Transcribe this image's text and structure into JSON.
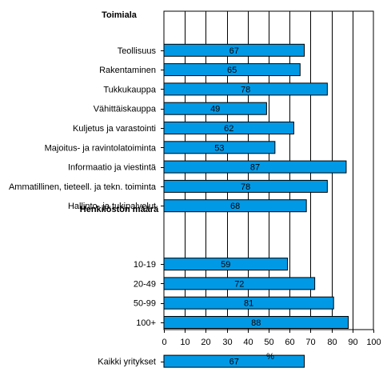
{
  "chart_data": {
    "type": "bar",
    "orientation": "horizontal",
    "xlabel": "%",
    "xlim": [
      0,
      100
    ],
    "xticks": [
      0,
      10,
      20,
      30,
      40,
      50,
      60,
      70,
      80,
      90,
      100
    ],
    "grid": "vertical",
    "bar_color": "#0099e6",
    "rows": [
      {
        "kind": "group",
        "label": "Toimiala"
      },
      {
        "kind": "bar",
        "label": "Teollisuus",
        "value": 67
      },
      {
        "kind": "bar",
        "label": "Rakentaminen",
        "value": 65
      },
      {
        "kind": "bar",
        "label": "Tukkukauppa",
        "value": 78
      },
      {
        "kind": "bar",
        "label": "Vähittäiskauppa",
        "value": 49
      },
      {
        "kind": "bar",
        "label": "Kuljetus ja varastointi",
        "value": 62
      },
      {
        "kind": "bar",
        "label": "Majoitus- ja ravintolatoiminta",
        "value": 53
      },
      {
        "kind": "bar",
        "label": "Informaatio ja viestintä",
        "value": 87
      },
      {
        "kind": "bar",
        "label": "Ammatillinen, tieteell. ja tekn. toiminta",
        "value": 78
      },
      {
        "kind": "bar",
        "label": "Hallinto- ja tukipalvelut",
        "value": 68
      },
      {
        "kind": "group",
        "label": "Henkilöstön määrä"
      },
      {
        "kind": "spacer"
      },
      {
        "kind": "bar",
        "label": "10-19",
        "value": 59
      },
      {
        "kind": "bar",
        "label": "20-49",
        "value": 72
      },
      {
        "kind": "bar",
        "label": "50-99",
        "value": 81
      },
      {
        "kind": "bar",
        "label": "100+",
        "value": 88
      },
      {
        "kind": "spacer"
      },
      {
        "kind": "bar",
        "label": "Kaikki yritykset",
        "value": 67
      }
    ]
  }
}
